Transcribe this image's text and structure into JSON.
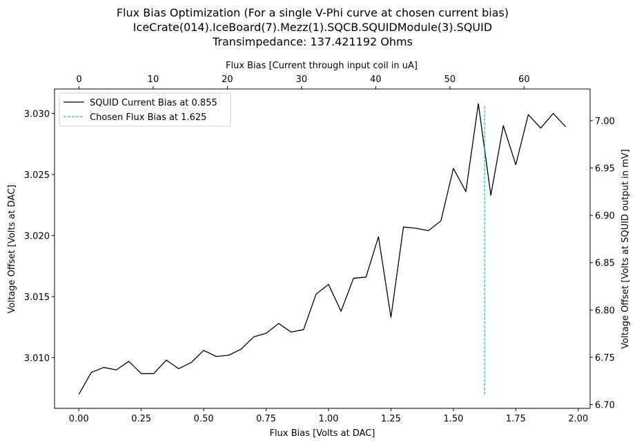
{
  "chart_data": {
    "type": "line",
    "title_lines": [
      "Flux Bias Optimization (For a single V-Phi curve at chosen current bias)",
      "IceCrate(014).IceBoard(7).Mezz(1).SQCB.SQUIDModule(3).SQUID",
      "Transimpedance: 137.421192 Ohms"
    ],
    "xlabel": "Flux Bias [Volts at DAC]",
    "ylabel": "Voltage Offset [Volts at DAC]",
    "x2label": "Flux Bias [Current through input coil in uA]",
    "y2label": "Voltage Offset [Volts at SQUID output in mV]",
    "xlim": [
      -0.0975,
      2.0475
    ],
    "ylim": [
      3.00585,
      3.032
    ],
    "x2lim": [
      -3.3,
      68.9
    ],
    "y2lim": [
      6.696,
      7.0335
    ],
    "xticks": [
      "0.00",
      "0.25",
      "0.50",
      "0.75",
      "1.00",
      "1.25",
      "1.50",
      "1.75",
      "2.00"
    ],
    "yticks": [
      "3.010",
      "3.015",
      "3.020",
      "3.025",
      "3.030"
    ],
    "x2ticks": [
      "0",
      "10",
      "20",
      "30",
      "40",
      "50",
      "60"
    ],
    "y2ticks": [
      "6.70",
      "6.75",
      "6.80",
      "6.85",
      "6.90",
      "6.95",
      "7.00"
    ],
    "grid": false,
    "legend_position": "upper-left",
    "series": [
      {
        "name": "SQUID Current Bias at 0.855",
        "color": "#000000",
        "style": "solid",
        "x": [
          0.0,
          0.05,
          0.1,
          0.15,
          0.2,
          0.25,
          0.3,
          0.35,
          0.4,
          0.45,
          0.5,
          0.55,
          0.6,
          0.65,
          0.7,
          0.75,
          0.8,
          0.85,
          0.9,
          0.95,
          1.0,
          1.05,
          1.1,
          1.15,
          1.2,
          1.25,
          1.3,
          1.35,
          1.4,
          1.45,
          1.5,
          1.55,
          1.6,
          1.65,
          1.7,
          1.75,
          1.8,
          1.85,
          1.9,
          1.95
        ],
        "y": [
          3.007,
          3.0088,
          3.0092,
          3.009,
          3.0097,
          3.0087,
          3.0087,
          3.0098,
          3.0091,
          3.0096,
          3.0106,
          3.0101,
          3.0102,
          3.0107,
          3.0117,
          3.012,
          3.0128,
          3.0121,
          3.0123,
          3.0152,
          3.016,
          3.0138,
          3.0165,
          3.0166,
          3.0199,
          3.0133,
          3.0207,
          3.0206,
          3.0204,
          3.0212,
          3.0255,
          3.0236,
          3.0308,
          3.0233,
          3.029,
          3.0258,
          3.0299,
          3.0288,
          3.03,
          3.0289
        ]
      },
      {
        "name": "Chosen Flux Bias at 1.625",
        "color": "#17becf",
        "style": "dashed",
        "x": [
          1.625,
          1.625
        ],
        "y": [
          3.007,
          3.0306
        ]
      }
    ]
  }
}
